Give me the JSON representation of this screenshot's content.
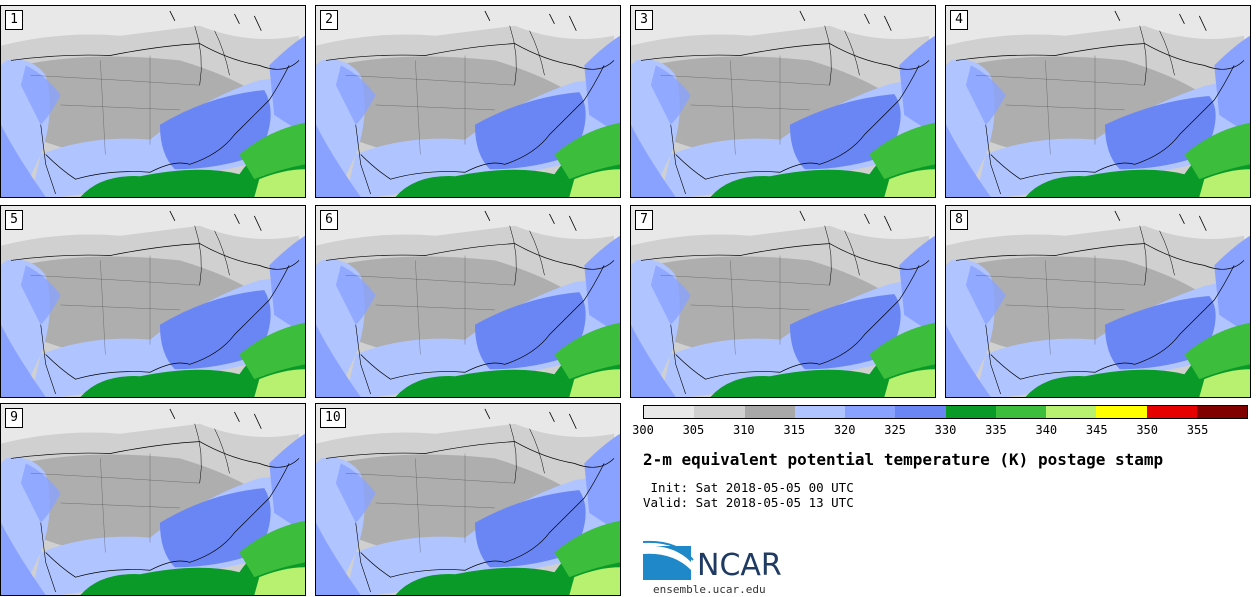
{
  "panels": [
    {
      "label": "1"
    },
    {
      "label": "2"
    },
    {
      "label": "3"
    },
    {
      "label": "4"
    },
    {
      "label": "5"
    },
    {
      "label": "6"
    },
    {
      "label": "7"
    },
    {
      "label": "8"
    },
    {
      "label": "9"
    },
    {
      "label": "10"
    }
  ],
  "colorbar": {
    "colors": [
      "#e8e8e8",
      "#d0d0d0",
      "#a8a8a8",
      "#b0c4ff",
      "#8aa2ff",
      "#6a86f5",
      "#0a9a28",
      "#3cbd3c",
      "#b8f070",
      "#ffff00",
      "#e60000",
      "#800000"
    ],
    "tick_labels": [
      "300",
      "305",
      "310",
      "315",
      "320",
      "325",
      "330",
      "335",
      "340",
      "345",
      "350",
      "355"
    ]
  },
  "title": "2-m equivalent potential temperature (K) postage stamp",
  "init": " Init: Sat 2018-05-05 00 UTC",
  "valid": "Valid: Sat 2018-05-05 13 UTC",
  "logo": {
    "text": "NCAR",
    "color": "#1f3a63",
    "accent": "#1e88c8"
  },
  "site": "ensemble.ucar.edu"
}
